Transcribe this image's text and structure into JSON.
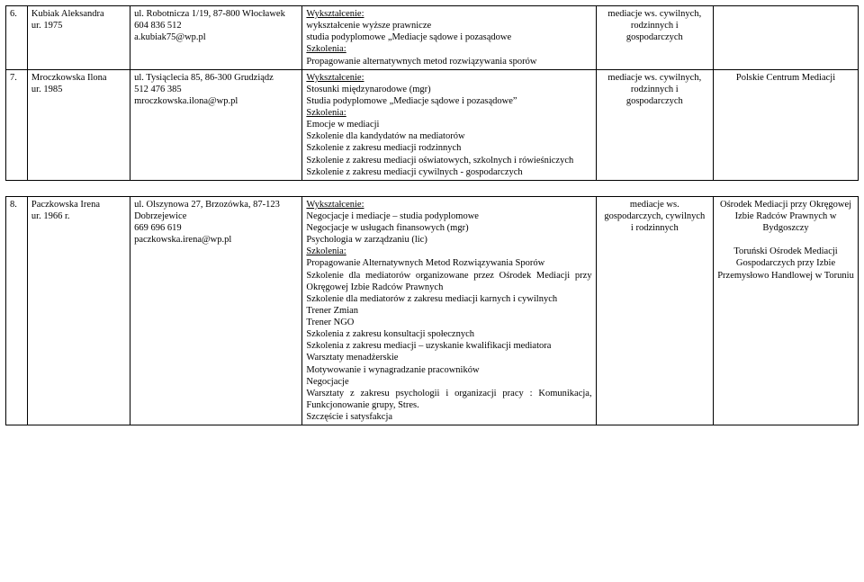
{
  "rows": [
    {
      "num": "6.",
      "name": "Kubiak Aleksandra",
      "birth": "ur. 1975",
      "addr1": "ul. Robotnicza 1/19, 87-800 Włocławek",
      "addr2": "604 836 512",
      "addr3": "a.kubiak75@wp.pl",
      "det_sect1": "Wykształcenie:",
      "det_l1": "wykształcenie wyższe prawnicze",
      "det_l2": "studia podyplomowe „Mediacje sądowe i pozasądowe",
      "det_sect2": "Szkolenia:",
      "det_l3": "Propagowanie alternatywnych metod rozwiązywania sporów",
      "scope1": "mediacje ws. cywilnych,",
      "scope2": "rodzinnych i",
      "scope3": "gospodarczych",
      "inst": ""
    },
    {
      "num": "7.",
      "name": "Mroczkowska Ilona",
      "birth": "ur. 1985",
      "addr1": "ul. Tysiąclecia 85, 86-300 Grudziądz",
      "addr2": "512 476 385",
      "addr3": "mroczkowska.ilona@wp.pl",
      "det_sect1": "Wykształcenie:",
      "det_l1": "Stosunki międzynarodowe (mgr)",
      "det_l2": "Studia podyplomowe „Mediacje sądowe i pozasądowe”",
      "det_sect2": "Szkolenia:",
      "det_l3": "Emocje w mediacji",
      "det_l4": "Szkolenie dla kandydatów na mediatorów",
      "det_l5": "Szkolenie z zakresu mediacji rodzinnych",
      "det_l6": "Szkolenie z zakresu mediacji oświatowych, szkolnych i rówieśniczych",
      "det_l7": "Szkolenie z zakresu mediacji cywilnych - gospodarczych",
      "scope1": "mediacje ws. cywilnych,",
      "scope2": "rodzinnych i",
      "scope3": "gospodarczych",
      "inst": "Polskie Centrum Mediacji"
    },
    {
      "num": "8.",
      "name": "Paczkowska Irena",
      "birth": "ur. 1966 r.",
      "addr1": "ul. Olszynowa 27, Brzozówka, 87-123 Dobrzejewice",
      "addr2": "669 696 619",
      "addr3": "paczkowska.irena@wp.pl",
      "det_sect1": "Wykształcenie:",
      "det_l1": "Negocjacje i mediacje – studia podyplomowe",
      "det_l2": "Negocjacje w usługach finansowych (mgr)",
      "det_l3": "Psychologia w zarządzaniu (lic)",
      "det_sect2": "Szkolenia:",
      "det_l4": "Propagowanie Alternatywnych Metod Rozwiązywania Sporów",
      "det_l5": "Szkolenie dla mediatorów organizowane przez Ośrodek Mediacji przy Okręgowej Izbie Radców Prawnych",
      "det_l6": "Szkolenie dla mediatorów z zakresu mediacji karnych i cywilnych",
      "det_l7": "Trener Zmian",
      "det_l8": "Trener NGO",
      "det_l9": "Szkolenia z zakresu konsultacji społecznych",
      "det_l10": "Szkolenia z zakresu mediacji – uzyskanie kwalifikacji mediatora",
      "det_l11": "Warsztaty menadżerskie",
      "det_l12": "Motywowanie i wynagradzanie pracowników",
      "det_l13": "Negocjacje",
      "det_l14": "Warsztaty z zakresu psychologii i organizacji pracy : Komunikacja, Funkcjonowanie grupy, Stres.",
      "det_l15": "Szczęście i satysfakcja",
      "scope1": "mediacje ws.",
      "scope2": "gospodarczych, cywilnych",
      "scope3": "i rodzinnych",
      "inst1": "Ośrodek Mediacji przy Okręgowej Izbie Radców Prawnych w Bydgoszczy",
      "inst2": "Toruński Ośrodek Mediacji Gospodarczych przy Izbie Przemysłowo Handlowej w Toruniu"
    }
  ]
}
